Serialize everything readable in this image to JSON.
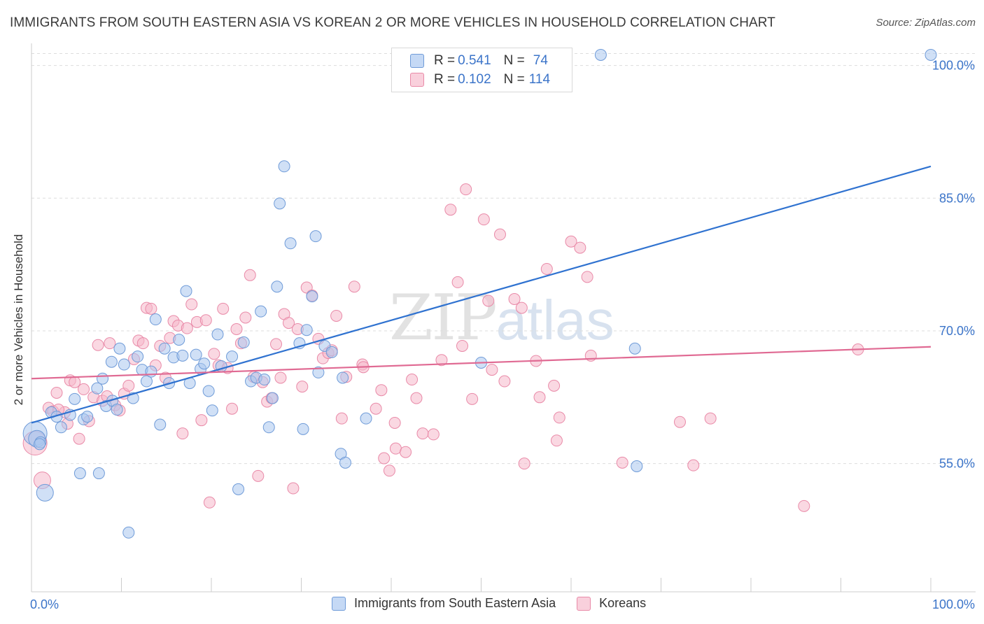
{
  "title": "IMMIGRANTS FROM SOUTH EASTERN ASIA VS KOREAN 2 OR MORE VEHICLES IN HOUSEHOLD CORRELATION CHART",
  "source": "Source: ZipAtlas.com",
  "watermark": {
    "zip": "ZIP",
    "atlas": "atlas"
  },
  "legend_top": {
    "rows": [
      {
        "r_label": "R = ",
        "r_value": "0.541",
        "n_label": "N = ",
        "n_value": "74"
      },
      {
        "r_label": "R = ",
        "r_value": "0.102",
        "n_label": "N = ",
        "n_value": "114"
      }
    ]
  },
  "colors": {
    "blue_fill": "#a9c6ee",
    "blue_stroke": "#6f9bd8",
    "blue_line": "#2f72d0",
    "pink_fill": "#f5b8cb",
    "pink_stroke": "#e98aa8",
    "pink_line": "#e06a93",
    "tick_label": "#3b74c9",
    "grid": "#dddddd"
  },
  "chart_data": {
    "type": "scatter",
    "title": "IMMIGRANTS FROM SOUTH EASTERN ASIA VS KOREAN 2 OR MORE VEHICLES IN HOUSEHOLD CORRELATION CHART",
    "xlabel": "",
    "ylabel": "2 or more Vehicles in Household",
    "xlim": [
      0,
      100
    ],
    "ylim": [
      40.5,
      102.5
    ],
    "x_tick_labels": [
      "0.0%",
      "100.0%"
    ],
    "y_ticks": [
      55,
      70,
      85,
      100
    ],
    "y_tick_labels": [
      "55.0%",
      "70.0%",
      "85.0%",
      "100.0%"
    ],
    "grid": true,
    "legend_position": "bottom",
    "series": [
      {
        "name": "Immigrants from South Eastern Asia",
        "color": "#a9c6ee",
        "trend": {
          "x": [
            0,
            100
          ],
          "y": [
            59.6,
            88.6
          ]
        },
        "points": [
          {
            "x": 0.4,
            "y": 58.4,
            "s": 3
          },
          {
            "x": 0.6,
            "y": 57.8,
            "s": 2
          },
          {
            "x": 1.0,
            "y": 57.4,
            "s": 1
          },
          {
            "x": 1.5,
            "y": 51.7,
            "s": 2
          },
          {
            "x": 2.2,
            "y": 60.8,
            "s": 1
          },
          {
            "x": 2.8,
            "y": 60.3,
            "s": 1
          },
          {
            "x": 3.3,
            "y": 59.1,
            "s": 1
          },
          {
            "x": 4.3,
            "y": 60.5,
            "s": 1
          },
          {
            "x": 4.8,
            "y": 62.3,
            "s": 1
          },
          {
            "x": 5.4,
            "y": 53.9,
            "s": 1
          },
          {
            "x": 5.8,
            "y": 60.0,
            "s": 1
          },
          {
            "x": 6.2,
            "y": 60.3,
            "s": 1
          },
          {
            "x": 7.3,
            "y": 63.5,
            "s": 1
          },
          {
            "x": 7.5,
            "y": 53.9,
            "s": 1
          },
          {
            "x": 7.9,
            "y": 64.6,
            "s": 1
          },
          {
            "x": 8.3,
            "y": 61.5,
            "s": 1
          },
          {
            "x": 8.9,
            "y": 66.5,
            "s": 1
          },
          {
            "x": 9.0,
            "y": 62.1,
            "s": 1
          },
          {
            "x": 9.5,
            "y": 61.1,
            "s": 1
          },
          {
            "x": 9.8,
            "y": 68.0,
            "s": 1
          },
          {
            "x": 10.3,
            "y": 66.2,
            "s": 1
          },
          {
            "x": 10.8,
            "y": 47.2,
            "s": 1
          },
          {
            "x": 11.3,
            "y": 62.4,
            "s": 1
          },
          {
            "x": 11.8,
            "y": 67.1,
            "s": 1
          },
          {
            "x": 12.3,
            "y": 65.6,
            "s": 1
          },
          {
            "x": 12.8,
            "y": 64.3,
            "s": 1
          },
          {
            "x": 13.3,
            "y": 65.4,
            "s": 1
          },
          {
            "x": 13.8,
            "y": 71.3,
            "s": 1
          },
          {
            "x": 14.3,
            "y": 59.4,
            "s": 1
          },
          {
            "x": 14.8,
            "y": 68.0,
            "s": 1
          },
          {
            "x": 15.3,
            "y": 64.1,
            "s": 1
          },
          {
            "x": 15.8,
            "y": 67.0,
            "s": 1
          },
          {
            "x": 16.4,
            "y": 69.0,
            "s": 1
          },
          {
            "x": 16.8,
            "y": 67.2,
            "s": 1
          },
          {
            "x": 17.2,
            "y": 74.5,
            "s": 1
          },
          {
            "x": 17.6,
            "y": 64.1,
            "s": 1
          },
          {
            "x": 18.3,
            "y": 67.3,
            "s": 1
          },
          {
            "x": 18.8,
            "y": 65.7,
            "s": 1
          },
          {
            "x": 19.2,
            "y": 66.3,
            "s": 1
          },
          {
            "x": 19.7,
            "y": 63.2,
            "s": 1
          },
          {
            "x": 20.1,
            "y": 61.0,
            "s": 1
          },
          {
            "x": 20.7,
            "y": 69.6,
            "s": 1
          },
          {
            "x": 21.1,
            "y": 66.0,
            "s": 1
          },
          {
            "x": 22.3,
            "y": 67.1,
            "s": 1
          },
          {
            "x": 23.0,
            "y": 52.1,
            "s": 1
          },
          {
            "x": 23.6,
            "y": 68.7,
            "s": 1
          },
          {
            "x": 24.4,
            "y": 64.3,
            "s": 1
          },
          {
            "x": 25.0,
            "y": 64.7,
            "s": 1
          },
          {
            "x": 25.5,
            "y": 72.2,
            "s": 1
          },
          {
            "x": 25.9,
            "y": 64.5,
            "s": 1
          },
          {
            "x": 26.8,
            "y": 62.4,
            "s": 1
          },
          {
            "x": 26.4,
            "y": 59.1,
            "s": 1
          },
          {
            "x": 27.3,
            "y": 75.0,
            "s": 1
          },
          {
            "x": 27.6,
            "y": 84.4,
            "s": 1
          },
          {
            "x": 28.1,
            "y": 88.6,
            "s": 1
          },
          {
            "x": 28.8,
            "y": 79.9,
            "s": 1
          },
          {
            "x": 29.8,
            "y": 68.6,
            "s": 1
          },
          {
            "x": 30.2,
            "y": 58.9,
            "s": 1
          },
          {
            "x": 30.6,
            "y": 70.1,
            "s": 1
          },
          {
            "x": 31.2,
            "y": 73.9,
            "s": 1
          },
          {
            "x": 31.6,
            "y": 80.7,
            "s": 1
          },
          {
            "x": 31.9,
            "y": 65.3,
            "s": 1
          },
          {
            "x": 32.6,
            "y": 68.3,
            "s": 1
          },
          {
            "x": 33.4,
            "y": 67.6,
            "s": 1
          },
          {
            "x": 34.4,
            "y": 56.1,
            "s": 1
          },
          {
            "x": 34.6,
            "y": 64.7,
            "s": 1
          },
          {
            "x": 34.9,
            "y": 55.1,
            "s": 1
          },
          {
            "x": 37.2,
            "y": 60.1,
            "s": 1
          },
          {
            "x": 50.0,
            "y": 66.4,
            "s": 1
          },
          {
            "x": 63.3,
            "y": 101.2,
            "s": 1
          },
          {
            "x": 67.1,
            "y": 68.0,
            "s": 1
          },
          {
            "x": 67.3,
            "y": 54.7,
            "s": 1
          },
          {
            "x": 100.0,
            "y": 101.2,
            "s": 1
          },
          {
            "x": 0.9,
            "y": 57.2,
            "s": 1
          }
        ]
      },
      {
        "name": "Koreans",
        "color": "#f5b8cb",
        "trend": {
          "x": [
            0,
            100
          ],
          "y": [
            64.6,
            68.2
          ]
        },
        "points": [
          {
            "x": 0.4,
            "y": 57.3,
            "s": 3
          },
          {
            "x": 1.2,
            "y": 53.1,
            "s": 2
          },
          {
            "x": 1.9,
            "y": 61.3,
            "s": 1
          },
          {
            "x": 2.4,
            "y": 60.9,
            "s": 1
          },
          {
            "x": 2.8,
            "y": 63.0,
            "s": 1
          },
          {
            "x": 3.7,
            "y": 60.8,
            "s": 1
          },
          {
            "x": 4.0,
            "y": 59.5,
            "s": 1
          },
          {
            "x": 4.3,
            "y": 64.4,
            "s": 1
          },
          {
            "x": 4.8,
            "y": 64.2,
            "s": 1
          },
          {
            "x": 5.3,
            "y": 57.8,
            "s": 1
          },
          {
            "x": 5.8,
            "y": 63.4,
            "s": 1
          },
          {
            "x": 6.4,
            "y": 59.8,
            "s": 1
          },
          {
            "x": 6.9,
            "y": 62.5,
            "s": 1
          },
          {
            "x": 7.4,
            "y": 68.4,
            "s": 1
          },
          {
            "x": 7.9,
            "y": 62.1,
            "s": 1
          },
          {
            "x": 8.4,
            "y": 62.6,
            "s": 1
          },
          {
            "x": 8.7,
            "y": 68.6,
            "s": 1
          },
          {
            "x": 9.3,
            "y": 61.6,
            "s": 1
          },
          {
            "x": 9.8,
            "y": 61.0,
            "s": 1
          },
          {
            "x": 10.3,
            "y": 62.9,
            "s": 1
          },
          {
            "x": 10.8,
            "y": 63.8,
            "s": 1
          },
          {
            "x": 11.4,
            "y": 66.8,
            "s": 1
          },
          {
            "x": 11.9,
            "y": 68.9,
            "s": 1
          },
          {
            "x": 12.4,
            "y": 68.6,
            "s": 1
          },
          {
            "x": 12.8,
            "y": 72.6,
            "s": 1
          },
          {
            "x": 13.3,
            "y": 72.5,
            "s": 1
          },
          {
            "x": 13.8,
            "y": 66.1,
            "s": 1
          },
          {
            "x": 14.3,
            "y": 68.3,
            "s": 1
          },
          {
            "x": 14.9,
            "y": 64.7,
            "s": 1
          },
          {
            "x": 15.4,
            "y": 69.2,
            "s": 1
          },
          {
            "x": 15.8,
            "y": 71.1,
            "s": 1
          },
          {
            "x": 16.3,
            "y": 70.6,
            "s": 1
          },
          {
            "x": 16.8,
            "y": 58.4,
            "s": 1
          },
          {
            "x": 17.3,
            "y": 70.3,
            "s": 1
          },
          {
            "x": 17.8,
            "y": 73.0,
            "s": 1
          },
          {
            "x": 18.4,
            "y": 71.0,
            "s": 1
          },
          {
            "x": 18.9,
            "y": 59.9,
            "s": 1
          },
          {
            "x": 19.4,
            "y": 71.2,
            "s": 1
          },
          {
            "x": 19.8,
            "y": 50.6,
            "s": 1
          },
          {
            "x": 20.3,
            "y": 67.4,
            "s": 1
          },
          {
            "x": 20.8,
            "y": 66.1,
            "s": 1
          },
          {
            "x": 21.3,
            "y": 72.5,
            "s": 1
          },
          {
            "x": 21.8,
            "y": 65.8,
            "s": 1
          },
          {
            "x": 22.3,
            "y": 61.2,
            "s": 1
          },
          {
            "x": 22.8,
            "y": 70.2,
            "s": 1
          },
          {
            "x": 23.3,
            "y": 68.6,
            "s": 1
          },
          {
            "x": 23.8,
            "y": 71.5,
            "s": 1
          },
          {
            "x": 24.3,
            "y": 76.3,
            "s": 1
          },
          {
            "x": 24.7,
            "y": 64.8,
            "s": 1
          },
          {
            "x": 25.2,
            "y": 53.6,
            "s": 1
          },
          {
            "x": 25.7,
            "y": 64.2,
            "s": 1
          },
          {
            "x": 26.2,
            "y": 62.0,
            "s": 1
          },
          {
            "x": 26.7,
            "y": 62.4,
            "s": 1
          },
          {
            "x": 27.2,
            "y": 68.5,
            "s": 1
          },
          {
            "x": 27.7,
            "y": 64.7,
            "s": 1
          },
          {
            "x": 28.1,
            "y": 71.9,
            "s": 1
          },
          {
            "x": 28.6,
            "y": 70.9,
            "s": 1
          },
          {
            "x": 29.1,
            "y": 52.2,
            "s": 1
          },
          {
            "x": 29.6,
            "y": 70.2,
            "s": 1
          },
          {
            "x": 30.1,
            "y": 63.7,
            "s": 1
          },
          {
            "x": 30.6,
            "y": 74.9,
            "s": 1
          },
          {
            "x": 31.2,
            "y": 74.0,
            "s": 1
          },
          {
            "x": 31.9,
            "y": 69.1,
            "s": 1
          },
          {
            "x": 32.4,
            "y": 66.9,
            "s": 1
          },
          {
            "x": 33.0,
            "y": 67.5,
            "s": 1
          },
          {
            "x": 33.4,
            "y": 67.8,
            "s": 1
          },
          {
            "x": 33.9,
            "y": 71.7,
            "s": 1
          },
          {
            "x": 34.5,
            "y": 60.1,
            "s": 1
          },
          {
            "x": 35.0,
            "y": 64.8,
            "s": 1
          },
          {
            "x": 35.9,
            "y": 75.0,
            "s": 1
          },
          {
            "x": 36.8,
            "y": 66.2,
            "s": 1
          },
          {
            "x": 36.9,
            "y": 65.9,
            "s": 1
          },
          {
            "x": 38.3,
            "y": 61.2,
            "s": 1
          },
          {
            "x": 38.9,
            "y": 63.3,
            "s": 1
          },
          {
            "x": 39.2,
            "y": 55.6,
            "s": 1
          },
          {
            "x": 39.8,
            "y": 54.2,
            "s": 1
          },
          {
            "x": 40.4,
            "y": 59.6,
            "s": 1
          },
          {
            "x": 40.5,
            "y": 56.7,
            "s": 1
          },
          {
            "x": 41.6,
            "y": 56.3,
            "s": 1
          },
          {
            "x": 42.3,
            "y": 64.5,
            "s": 1
          },
          {
            "x": 42.8,
            "y": 62.4,
            "s": 1
          },
          {
            "x": 43.5,
            "y": 58.4,
            "s": 1
          },
          {
            "x": 44.7,
            "y": 58.3,
            "s": 1
          },
          {
            "x": 45.6,
            "y": 66.7,
            "s": 1
          },
          {
            "x": 46.6,
            "y": 83.7,
            "s": 1
          },
          {
            "x": 47.4,
            "y": 75.5,
            "s": 1
          },
          {
            "x": 47.9,
            "y": 68.3,
            "s": 1
          },
          {
            "x": 48.3,
            "y": 86.0,
            "s": 1
          },
          {
            "x": 49.0,
            "y": 62.3,
            "s": 1
          },
          {
            "x": 50.3,
            "y": 82.6,
            "s": 1
          },
          {
            "x": 50.8,
            "y": 73.4,
            "s": 1
          },
          {
            "x": 51.2,
            "y": 65.6,
            "s": 1
          },
          {
            "x": 52.1,
            "y": 80.9,
            "s": 1
          },
          {
            "x": 52.6,
            "y": 64.3,
            "s": 1
          },
          {
            "x": 53.7,
            "y": 73.6,
            "s": 1
          },
          {
            "x": 54.5,
            "y": 72.6,
            "s": 1
          },
          {
            "x": 54.8,
            "y": 55.0,
            "s": 1
          },
          {
            "x": 56.1,
            "y": 66.6,
            "s": 1
          },
          {
            "x": 56.5,
            "y": 62.5,
            "s": 1
          },
          {
            "x": 57.3,
            "y": 77.0,
            "s": 1
          },
          {
            "x": 58.1,
            "y": 63.8,
            "s": 1
          },
          {
            "x": 58.4,
            "y": 57.6,
            "s": 1
          },
          {
            "x": 58.7,
            "y": 60.2,
            "s": 1
          },
          {
            "x": 60.0,
            "y": 80.1,
            "s": 1
          },
          {
            "x": 61.0,
            "y": 79.4,
            "s": 1
          },
          {
            "x": 61.8,
            "y": 76.1,
            "s": 1
          },
          {
            "x": 62.2,
            "y": 67.2,
            "s": 1
          },
          {
            "x": 65.7,
            "y": 55.1,
            "s": 1
          },
          {
            "x": 72.1,
            "y": 59.7,
            "s": 1
          },
          {
            "x": 73.6,
            "y": 54.8,
            "s": 1
          },
          {
            "x": 75.5,
            "y": 60.1,
            "s": 1
          },
          {
            "x": 85.9,
            "y": 50.2,
            "s": 1
          },
          {
            "x": 91.9,
            "y": 67.9,
            "s": 1
          },
          {
            "x": 3.0,
            "y": 61.1,
            "s": 1
          }
        ]
      }
    ]
  },
  "legend_bottom": {
    "items": [
      {
        "label": "Immigrants from South Eastern Asia"
      },
      {
        "label": "Koreans"
      }
    ]
  }
}
